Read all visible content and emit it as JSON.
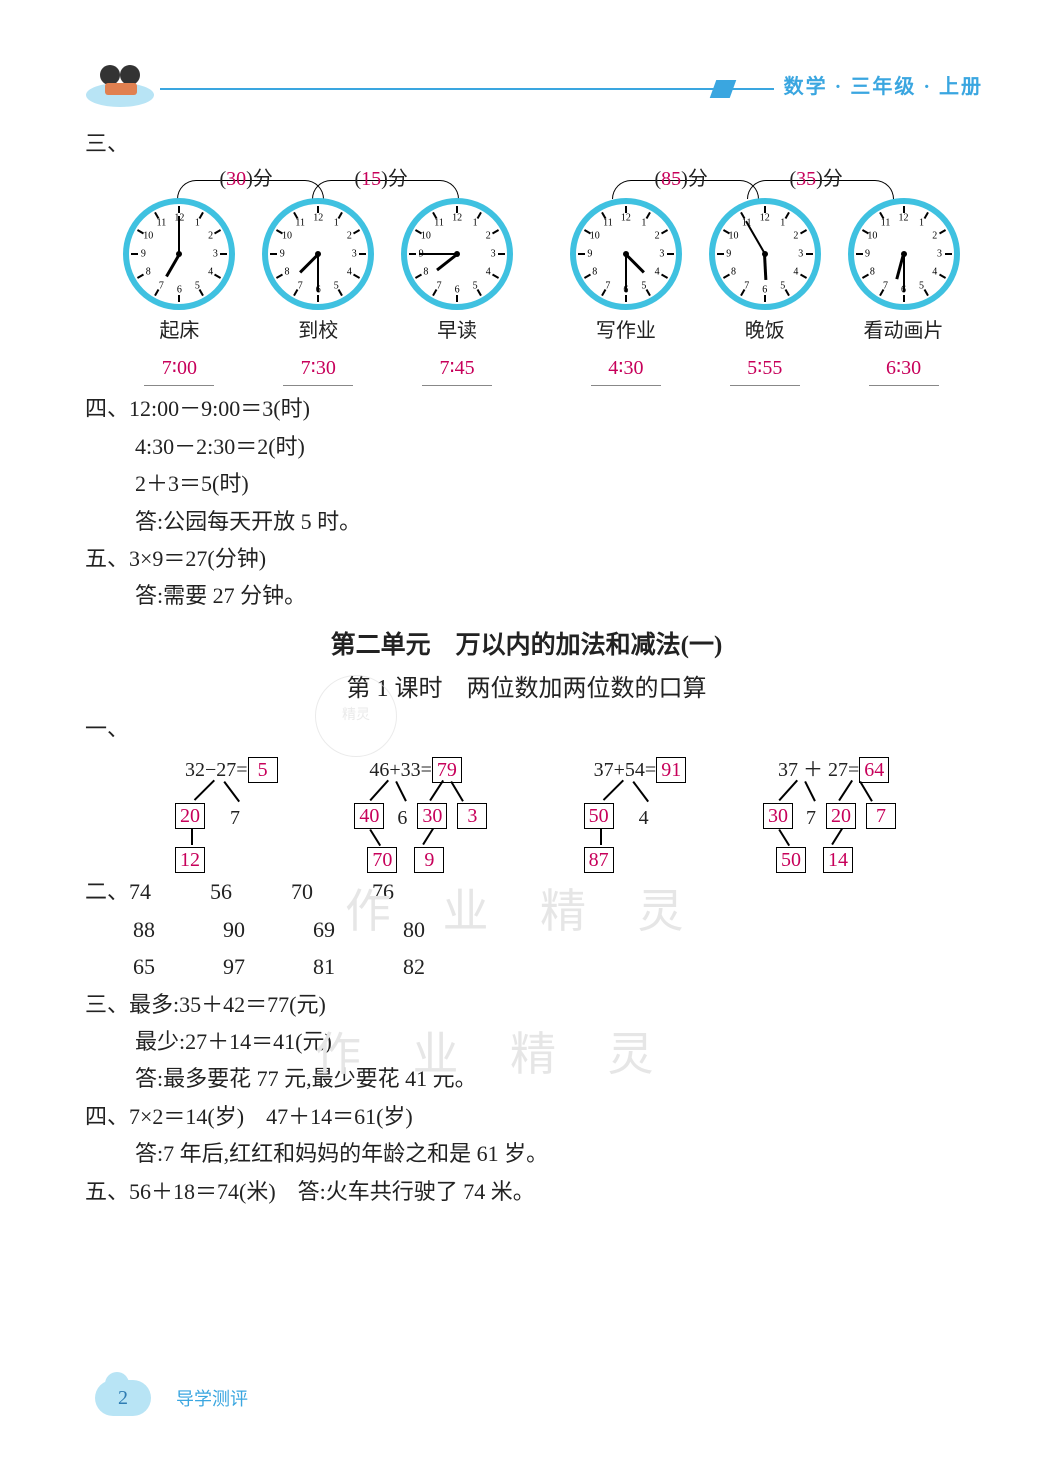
{
  "header": {
    "title": "数学 · 三年级 · 上册"
  },
  "colors": {
    "blue": "#3aa6e0",
    "cyan_ring": "#3fc1e0",
    "answer": "#c7005a",
    "watermark": "#e6e6e6",
    "text": "#222222"
  },
  "section3": {
    "label": "三、",
    "clocks": [
      {
        "label": "起床",
        "time": "7∶00",
        "hour_angle": 210,
        "min_angle": 0
      },
      {
        "label": "到校",
        "time": "7∶30",
        "hour_angle": 225,
        "min_angle": 180
      },
      {
        "label": "早读",
        "time": "7∶45",
        "hour_angle": 232,
        "min_angle": 270
      },
      {
        "label": "写作业",
        "time": "4∶30",
        "hour_angle": 135,
        "min_angle": 180
      },
      {
        "label": "晚饭",
        "time": "5∶55",
        "hour_angle": 177,
        "min_angle": 330
      },
      {
        "label": "看动画片",
        "time": "6∶30",
        "hour_angle": 195,
        "min_angle": 180
      }
    ],
    "arcs": [
      {
        "between": [
          0,
          1
        ],
        "answer": "30",
        "unit": "分"
      },
      {
        "between": [
          1,
          2
        ],
        "answer": "15",
        "unit": "分"
      },
      {
        "between": [
          3,
          4
        ],
        "answer": "85",
        "unit": "分"
      },
      {
        "between": [
          4,
          5
        ],
        "answer": "35",
        "unit": "分"
      }
    ]
  },
  "section4": {
    "label": "四、",
    "lines": [
      "12:00－9:00＝3(时)",
      "4:30－2:30＝2(时)",
      "2＋3＝5(时)",
      "答:公园每天开放 5 时。"
    ]
  },
  "section5": {
    "label": "五、",
    "line1": "3×9＝27(分钟)",
    "line2": "答:需要 27 分钟。"
  },
  "unit2": {
    "title": "第二单元　万以内的加法和减法(一)",
    "lesson": "第 1 课时　两位数加两位数的口算"
  },
  "q1": {
    "label": "一、",
    "diagrams": [
      {
        "expr": "32−27=",
        "ans": "5",
        "l2a": "20",
        "l2b": "7",
        "l3": "12"
      },
      {
        "expr": "46+33=",
        "ans": "79",
        "l2a": "40",
        "l2b": "6",
        "l2c": "30",
        "l2d": "3",
        "l3a": "70",
        "l3b": "9"
      },
      {
        "expr": "37+54=",
        "ans": "91",
        "l2a": "50",
        "l2b": "4",
        "l3": "87"
      },
      {
        "expr": "37 ＋ 27=",
        "ans": "64",
        "l2a": "30",
        "l2b": "7",
        "l2c": "20",
        "l2d": "7",
        "l3a": "50",
        "l3b": "14"
      }
    ]
  },
  "q2": {
    "label": "二、",
    "rows": [
      [
        "74",
        "56",
        "70",
        "76"
      ],
      [
        "88",
        "90",
        "69",
        "80"
      ],
      [
        "65",
        "97",
        "81",
        "82"
      ]
    ]
  },
  "q3": {
    "label": "三、",
    "lines": [
      "最多:35＋42＝77(元)",
      "最少:27＋14＝41(元)",
      "答:最多要花 77 元,最少要花 41 元。"
    ]
  },
  "q4": {
    "label": "四、",
    "line1": "7×2＝14(岁)　47＋14＝61(岁)",
    "line2": "答:7 年后,红红和妈妈的年龄之和是 61 岁。"
  },
  "q5": {
    "label": "五、",
    "line": "56＋18＝74(米)　答:火车共行驶了 74 米。"
  },
  "footer": {
    "page": "2",
    "text": "导学测评"
  },
  "watermark": "作 业 精 灵"
}
